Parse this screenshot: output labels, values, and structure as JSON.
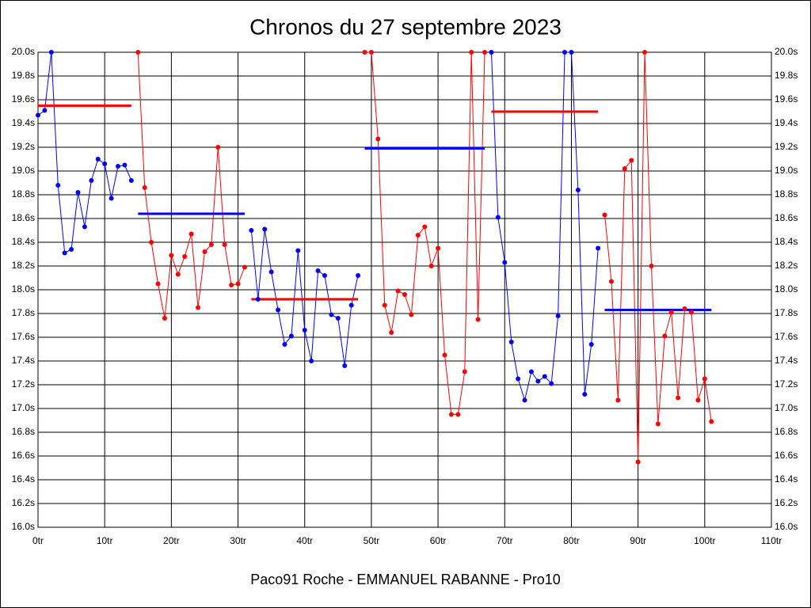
{
  "chart_data": {
    "type": "line",
    "title": "Chronos du 27 septembre 2023",
    "caption": "Paco91 Roche - EMMANUEL RABANNE - Pro10",
    "grid": true,
    "xlim": [
      0,
      110
    ],
    "ylim": [
      16.0,
      20.0
    ],
    "xticks": [
      {
        "value": 0,
        "label": "0tr"
      },
      {
        "value": 10,
        "label": "10tr"
      },
      {
        "value": 20,
        "label": "20tr"
      },
      {
        "value": 30,
        "label": "30tr"
      },
      {
        "value": 40,
        "label": "40tr"
      },
      {
        "value": 50,
        "label": "50tr"
      },
      {
        "value": 60,
        "label": "60tr"
      },
      {
        "value": 70,
        "label": "70tr"
      },
      {
        "value": 80,
        "label": "80tr"
      },
      {
        "value": 90,
        "label": "90tr"
      },
      {
        "value": 100,
        "label": "100tr"
      },
      {
        "value": 110,
        "label": "110tr"
      }
    ],
    "yticks": [
      {
        "value": 16.0,
        "label": "16.0s"
      },
      {
        "value": 16.2,
        "label": "16.2s"
      },
      {
        "value": 16.4,
        "label": "16.4s"
      },
      {
        "value": 16.6,
        "label": "16.6s"
      },
      {
        "value": 16.8,
        "label": "16.8s"
      },
      {
        "value": 17.0,
        "label": "17.0s"
      },
      {
        "value": 17.2,
        "label": "17.2s"
      },
      {
        "value": 17.4,
        "label": "17.4s"
      },
      {
        "value": 17.6,
        "label": "17.6s"
      },
      {
        "value": 17.8,
        "label": "17.8s"
      },
      {
        "value": 18.0,
        "label": "18.0s"
      },
      {
        "value": 18.2,
        "label": "18.2s"
      },
      {
        "value": 18.4,
        "label": "18.4s"
      },
      {
        "value": 18.6,
        "label": "18.6s"
      },
      {
        "value": 18.8,
        "label": "18.8s"
      },
      {
        "value": 19.0,
        "label": "19.0s"
      },
      {
        "value": 19.2,
        "label": "19.2s"
      },
      {
        "value": 19.4,
        "label": "19.4s"
      },
      {
        "value": 19.6,
        "label": "19.6s"
      },
      {
        "value": 19.8,
        "label": "19.8s"
      },
      {
        "value": 20.0,
        "label": "20.0s"
      }
    ],
    "series": [
      {
        "color": "#0000ff",
        "mean_color": "#ff0000",
        "mean": 19.55,
        "x": [
          0,
          1,
          2,
          3,
          4,
          5,
          6,
          7,
          8,
          9,
          10,
          11,
          12,
          13,
          14
        ],
        "values": [
          19.47,
          19.51,
          20.0,
          18.88,
          18.31,
          18.34,
          18.82,
          18.53,
          18.92,
          19.1,
          19.06,
          18.77,
          19.04,
          19.05,
          18.92
        ]
      },
      {
        "color": "#ff0000",
        "mean_color": "#0000ff",
        "mean": 18.64,
        "x": [
          15,
          16,
          17,
          18,
          19,
          20,
          21,
          22,
          23,
          24,
          25,
          26,
          27,
          28,
          29,
          30,
          31
        ],
        "values": [
          20.0,
          18.86,
          18.4,
          18.05,
          17.76,
          18.29,
          18.13,
          18.28,
          18.47,
          17.85,
          18.32,
          18.38,
          19.2,
          18.38,
          18.04,
          18.05,
          18.19
        ]
      },
      {
        "color": "#0000ff",
        "mean_color": "#ff0000",
        "mean": 17.92,
        "x": [
          32,
          33,
          34,
          35,
          36,
          37,
          38,
          39,
          40,
          41,
          42,
          43,
          44,
          45,
          46,
          47,
          48
        ],
        "values": [
          18.5,
          17.92,
          18.51,
          18.15,
          17.83,
          17.54,
          17.61,
          18.33,
          17.66,
          17.4,
          18.16,
          18.12,
          17.79,
          17.76,
          17.36,
          17.87,
          18.12
        ]
      },
      {
        "color": "#ff0000",
        "mean_color": "#0000ff",
        "mean": 19.19,
        "x": [
          49,
          50,
          51,
          52,
          53,
          54,
          55,
          56,
          57,
          58,
          59,
          60,
          61,
          62,
          63,
          64,
          65,
          66,
          67
        ],
        "values": [
          20.0,
          20.0,
          19.27,
          17.87,
          17.64,
          17.99,
          17.96,
          17.79,
          18.46,
          18.53,
          18.2,
          18.35,
          17.45,
          16.95,
          16.95,
          17.31,
          20.0,
          17.75,
          20.0
        ]
      },
      {
        "color": "#0000ff",
        "mean_color": "#ff0000",
        "mean": 19.5,
        "x": [
          68,
          69,
          70,
          71,
          72,
          73,
          74,
          75,
          76,
          77,
          78,
          79,
          80,
          81,
          82,
          83,
          84
        ],
        "values": [
          20.0,
          18.61,
          18.23,
          17.56,
          17.25,
          17.07,
          17.31,
          17.23,
          17.27,
          17.21,
          17.78,
          20.0,
          20.0,
          18.84,
          17.12,
          17.54,
          18.35
        ]
      },
      {
        "color": "#ff0000",
        "mean_color": "#0000ff",
        "mean": 17.83,
        "x": [
          85,
          86,
          87,
          88,
          89,
          90,
          91,
          92,
          93,
          94,
          95,
          96,
          97,
          98,
          99,
          100,
          101
        ],
        "values": [
          18.63,
          18.07,
          17.07,
          19.02,
          19.09,
          16.55,
          20.0,
          18.2,
          16.87,
          17.61,
          17.81,
          17.09,
          17.84,
          17.81,
          17.07,
          17.25,
          16.89
        ]
      }
    ]
  }
}
